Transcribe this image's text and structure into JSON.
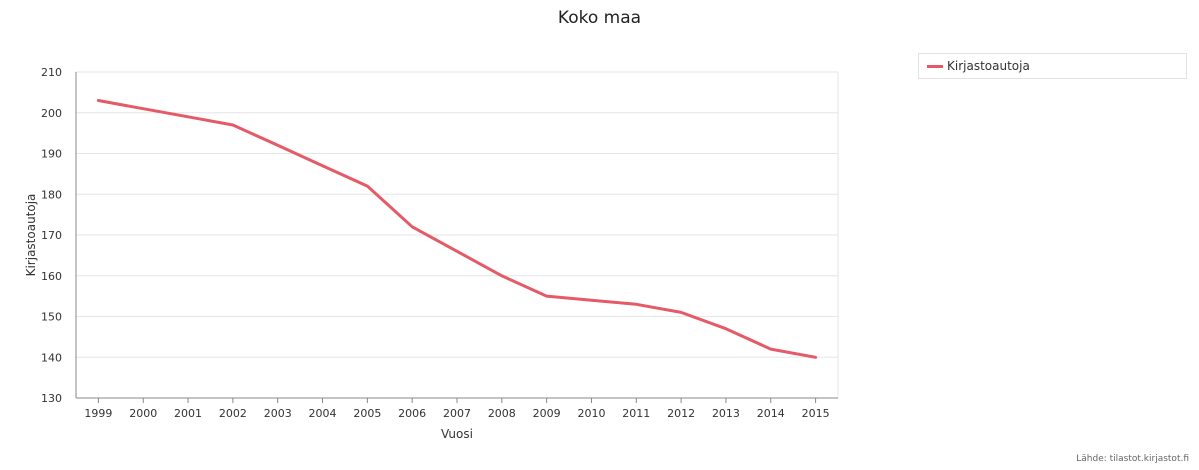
{
  "chart_data": {
    "type": "line",
    "title": "Koko maa",
    "xlabel": "Vuosi",
    "ylabel": "Kirjastoautoja",
    "categories": [
      "1999",
      "2000",
      "2001",
      "2002",
      "2003",
      "2004",
      "2005",
      "2006",
      "2007",
      "2008",
      "2009",
      "2010",
      "2011",
      "2012",
      "2013",
      "2014",
      "2015"
    ],
    "series": [
      {
        "name": "Kirjastoautoja",
        "values": [
          203,
          201,
          199,
          197,
          192,
          187,
          182,
          172,
          166,
          160,
          155,
          154,
          153,
          151,
          147,
          142,
          140
        ]
      }
    ],
    "ylim": [
      130,
      210
    ],
    "yticks": [
      130,
      140,
      150,
      160,
      170,
      180,
      190,
      200,
      210
    ],
    "grid": true,
    "legend_position": "top-right",
    "colors": {
      "series": "#e55a66",
      "grid": "#e6e6e6",
      "axis": "#888888"
    }
  },
  "source_text": "Lähde: tilastot.kirjastot.fi"
}
